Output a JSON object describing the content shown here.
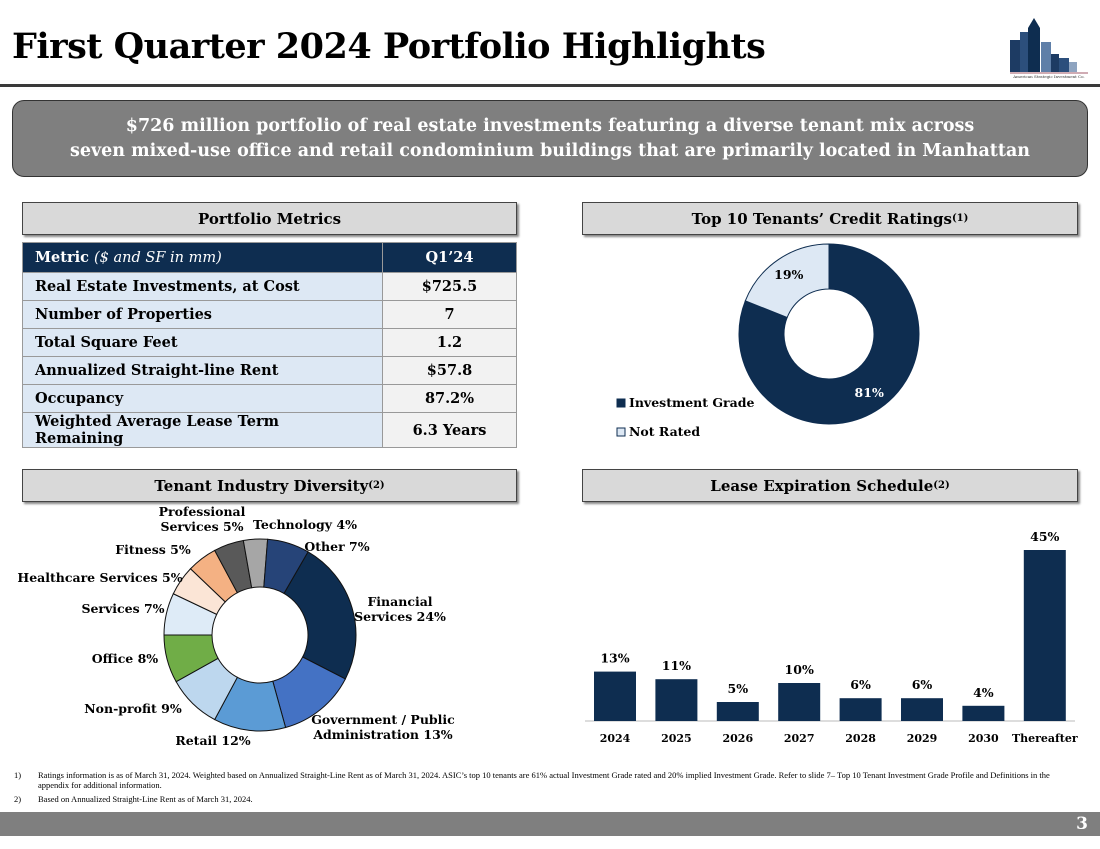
{
  "header": {
    "title": "First Quarter 2024 Portfolio Highlights",
    "logo_text": "American Strategic Investment Co."
  },
  "banner": {
    "line1": "$726 million portfolio of real estate investments featuring a diverse tenant mix across",
    "line2": "seven mixed-use office and retail condominium buildings that are primarily located in Manhattan"
  },
  "metrics": {
    "title": "Portfolio Metrics",
    "col1": "Metric",
    "col1_note": "($ and SF in mm)",
    "col2": "Q1’24",
    "rows": [
      [
        "Real Estate Investments, at Cost",
        "$725.5"
      ],
      [
        "Number of Properties",
        "7"
      ],
      [
        "Total Square Feet",
        "1.2"
      ],
      [
        "Annualized Straight-line Rent",
        "$57.8"
      ],
      [
        "Occupancy",
        "87.2%"
      ],
      [
        "Weighted Average Lease Term Remaining",
        "6.3 Years"
      ]
    ]
  },
  "sections": {
    "credit": "Top 10 Tenants’ Credit Ratings",
    "credit_sup": "(1)",
    "industry": "Tenant Industry Diversity",
    "industry_sup": "(2)",
    "lease": "Lease Expiration Schedule",
    "lease_sup": "(2)"
  },
  "chart_data": [
    {
      "type": "pie",
      "name": "credit-ratings",
      "donut": true,
      "categories": [
        "Investment Grade",
        "Not Rated"
      ],
      "values": [
        81,
        19
      ],
      "labels": [
        "81%",
        "19%"
      ],
      "colors": [
        "#0e2d50",
        "#dde8f4"
      ],
      "legend": "left"
    },
    {
      "type": "pie",
      "name": "tenant-industry",
      "donut": true,
      "categories": [
        "Financial Services",
        "Government / Public Administration",
        "Retail",
        "Non-profit",
        "Office",
        "Services",
        "Healthcare Services",
        "Fitness",
        "Professional Services",
        "Technology",
        "Other"
      ],
      "values": [
        24,
        13,
        12,
        9,
        8,
        7,
        5,
        5,
        5,
        4,
        7
      ],
      "labels": [
        "Financial\nServices 24%",
        "Government / Public\nAdministration 13%",
        "Retail 12%",
        "Non-profit 9%",
        "Office 8%",
        "Services 7%",
        "Healthcare Services 5%",
        "Fitness 5%",
        "Professional\nServices 5%",
        "Technology 4%",
        "Other 7%"
      ],
      "colors": [
        "#0e2d50",
        "#4472c4",
        "#5b9bd5",
        "#bdd7ee",
        "#70ad47",
        "#deebf7",
        "#fbe5d6",
        "#f4b183",
        "#595959",
        "#a6a6a6",
        "#264478"
      ]
    },
    {
      "type": "bar",
      "name": "lease-expiration",
      "categories": [
        "2024",
        "2025",
        "2026",
        "2027",
        "2028",
        "2029",
        "2030",
        "Thereafter"
      ],
      "values": [
        13,
        11,
        5,
        10,
        6,
        6,
        4,
        45
      ],
      "labels": [
        "13%",
        "11%",
        "5%",
        "10%",
        "6%",
        "6%",
        "4%",
        "45%"
      ],
      "color": "#0e2d50"
    }
  ],
  "footnotes": [
    [
      "1)",
      "Ratings information is as of March 31, 2024. Weighted based on Annualized Straight-Line Rent as of March 31, 2024. ASIC’s top 10 tenants are 61% actual Investment Grade rated and 20% implied Investment Grade. Refer to slide 7– Top 10 Tenant Investment Grade Profile and Definitions in the appendix for additional information."
    ],
    [
      "2)",
      "Based on Annualized Straight-Line Rent as of March 31, 2024."
    ]
  ],
  "page_number": "3"
}
